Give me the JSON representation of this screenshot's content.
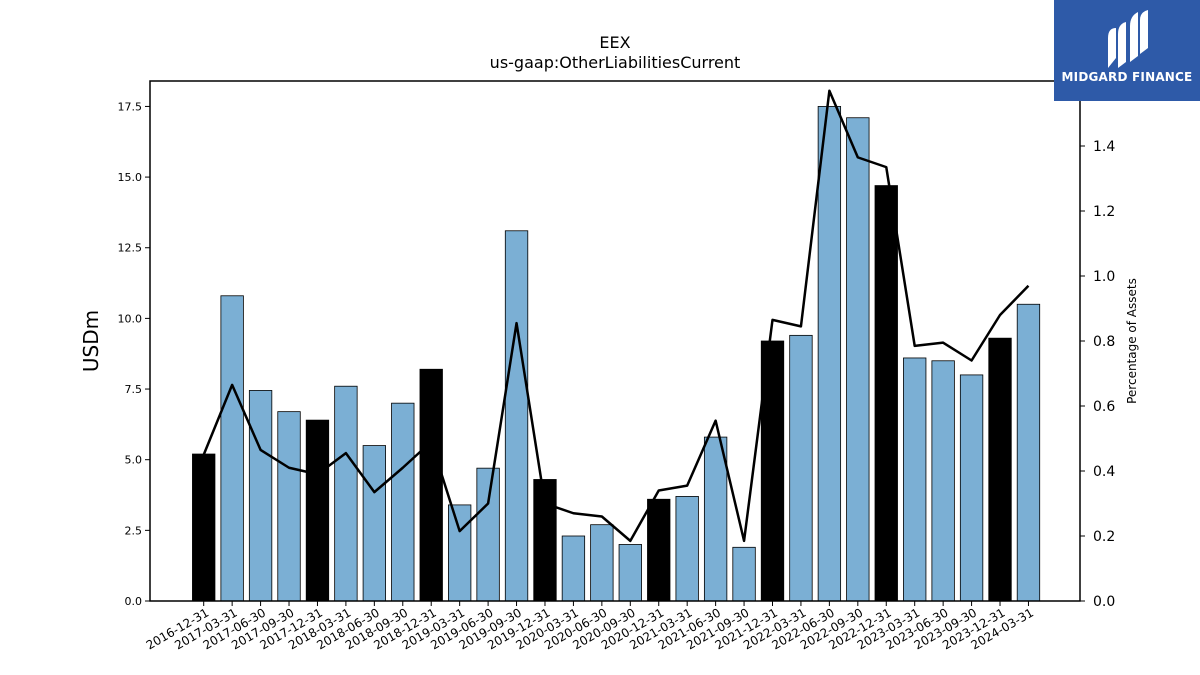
{
  "chart_data": {
    "type": "bar",
    "title": "EEX",
    "subtitle": "us-gaap:OtherLiabilitiesCurrent",
    "ylabel": "USDm",
    "y2label": "Percentage of Assets",
    "ylim": [
      0,
      18.4
    ],
    "y2lim": [
      0,
      1.6
    ],
    "yticks": [
      "0.0",
      "2.5",
      "5.0",
      "7.5",
      "10.0",
      "12.5",
      "15.0",
      "17.5"
    ],
    "y2ticks": [
      "0.0",
      "0.2",
      "0.4",
      "0.6",
      "0.8",
      "1.0",
      "1.2",
      "1.4"
    ],
    "categories": [
      "2016-12-31",
      "2017-03-31",
      "2017-06-30",
      "2017-09-30",
      "2017-12-31",
      "2018-03-31",
      "2018-06-30",
      "2018-09-30",
      "2018-12-31",
      "2019-03-31",
      "2019-06-30",
      "2019-09-30",
      "2019-12-31",
      "2020-03-31",
      "2020-06-30",
      "2020-09-30",
      "2020-12-31",
      "2021-03-31",
      "2021-06-30",
      "2021-09-30",
      "2021-12-31",
      "2022-03-31",
      "2022-06-30",
      "2022-09-30",
      "2022-12-31",
      "2023-03-31",
      "2023-06-30",
      "2023-09-30",
      "2023-12-31",
      "2024-03-31"
    ],
    "series": [
      {
        "type": "bar",
        "values": [
          5.2,
          10.8,
          7.45,
          6.7,
          6.4,
          7.6,
          5.5,
          7.0,
          8.2,
          3.4,
          4.7,
          13.1,
          4.3,
          2.3,
          2.7,
          2.0,
          3.6,
          3.7,
          5.8,
          1.9,
          9.2,
          9.4,
          17.5,
          17.1,
          14.7,
          8.6,
          8.5,
          8.0,
          9.3,
          10.5
        ]
      },
      {
        "type": "line",
        "axis": "right",
        "values": [
          0.45,
          0.665,
          0.465,
          0.41,
          0.39,
          0.455,
          0.335,
          0.41,
          0.49,
          0.215,
          0.3,
          0.855,
          0.3,
          0.27,
          0.26,
          0.185,
          0.34,
          0.355,
          0.555,
          0.185,
          0.865,
          0.845,
          1.57,
          1.365,
          1.335,
          0.785,
          0.795,
          0.74,
          0.88,
          0.97
        ]
      }
    ],
    "colors": {
      "bar": "#7bafd4",
      "year_end_bar": "#000000",
      "line": "#000000"
    }
  },
  "logo": {
    "text": "MIDGARD FINANCE",
    "background": "#2e5aa8"
  }
}
